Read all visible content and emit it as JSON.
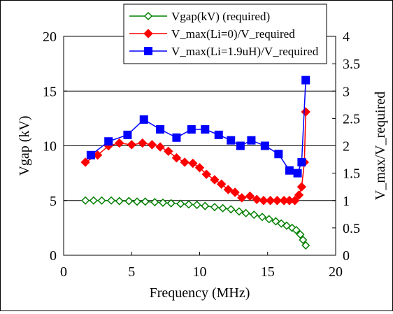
{
  "chart_data": {
    "type": "line",
    "title": "",
    "xlabel": "Frequency (MHz)",
    "ylabel": "Vgap (kV)",
    "y2label": "V_max/V_required",
    "xlim": [
      0,
      20
    ],
    "ylim": [
      0,
      20
    ],
    "y2lim": [
      0,
      4
    ],
    "x_ticks": [
      "0",
      "5",
      "10",
      "15",
      "20"
    ],
    "y_ticks": [
      "0",
      "5",
      "10",
      "15",
      "20"
    ],
    "y2_ticks": [
      "0",
      "0.5",
      "1",
      "1.5",
      "2",
      "2.5",
      "3",
      "3.5",
      "4"
    ],
    "grid": "horizontal",
    "legend_position": "top-center",
    "series": [
      {
        "name": "Vgap(kV) (required)",
        "axis": "left",
        "color": "#008000",
        "marker": "diamond-open",
        "x": [
          1.6,
          2.2,
          2.8,
          3.5,
          4.1,
          4.8,
          5.4,
          6.0,
          6.7,
          7.3,
          7.9,
          8.6,
          9.2,
          9.8,
          10.4,
          11.1,
          11.7,
          12.3,
          12.9,
          13.4,
          14.0,
          14.6,
          15.1,
          15.6,
          16.0,
          16.4,
          16.8,
          17.1,
          17.4,
          17.6,
          17.8
        ],
        "values": [
          5.0,
          5.0,
          5.0,
          5.0,
          4.95,
          4.95,
          4.9,
          4.9,
          4.85,
          4.8,
          4.75,
          4.7,
          4.65,
          4.6,
          4.5,
          4.4,
          4.3,
          4.2,
          4.0,
          3.85,
          3.7,
          3.5,
          3.3,
          3.1,
          2.9,
          2.7,
          2.5,
          2.3,
          1.9,
          1.4,
          0.9
        ]
      },
      {
        "name": "V_max(Li=0)/V_required",
        "axis": "right",
        "color": "#ff0000",
        "marker": "diamond-filled",
        "x": [
          1.6,
          2.5,
          3.3,
          4.1,
          5.0,
          5.8,
          6.5,
          7.1,
          7.7,
          8.3,
          8.9,
          9.5,
          10.0,
          10.5,
          11.1,
          11.6,
          12.1,
          12.6,
          13.1,
          13.7,
          14.2,
          14.7,
          15.2,
          15.7,
          16.2,
          16.6,
          17.0,
          17.3,
          17.5,
          17.7,
          17.8
        ],
        "values": [
          1.7,
          1.83,
          2.0,
          2.05,
          2.02,
          2.05,
          2.02,
          1.98,
          1.9,
          1.78,
          1.7,
          1.68,
          1.6,
          1.48,
          1.38,
          1.3,
          1.2,
          1.15,
          1.05,
          1.08,
          1.02,
          1.0,
          1.0,
          1.0,
          1.0,
          1.0,
          1.0,
          1.1,
          1.25,
          1.7,
          2.62
        ]
      },
      {
        "name": "V_max(Li=1.9uH)/V_required",
        "axis": "right",
        "color": "#0000ff",
        "marker": "square-filled",
        "x": [
          2.0,
          3.3,
          4.7,
          5.9,
          7.1,
          8.3,
          9.4,
          10.4,
          11.4,
          12.3,
          13.0,
          13.8,
          14.8,
          15.8,
          16.6,
          17.2,
          17.5,
          17.8
        ],
        "values": [
          1.83,
          2.08,
          2.2,
          2.48,
          2.3,
          2.15,
          2.3,
          2.3,
          2.2,
          2.1,
          2.0,
          2.1,
          2.0,
          1.85,
          1.55,
          1.5,
          1.7,
          3.2
        ]
      }
    ]
  }
}
